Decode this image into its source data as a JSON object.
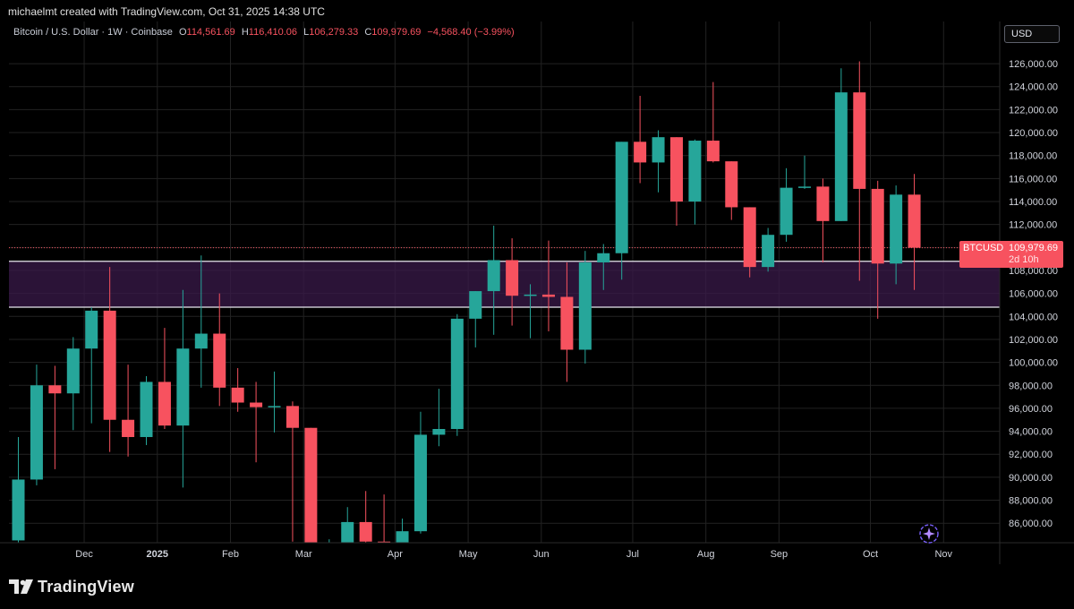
{
  "credit": "michaelmt created with TradingView.com, Oct 31, 2025 14:38 UTC",
  "legend": {
    "symbol": "Bitcoin / U.S. Dollar · 1W · Coinbase",
    "open_label": "O",
    "open": "114,561.69",
    "high_label": "H",
    "high": "116,410.06",
    "low_label": "L",
    "low": "106,279.33",
    "close_label": "C",
    "close": "109,979.69",
    "change": "−4,568.40 (−3.99%)"
  },
  "currency_button": "USD",
  "price_tag": {
    "symbol": "BTCUSD",
    "price": "109,979.69",
    "countdown": "2d 10h"
  },
  "brand": {
    "name": "TradingView"
  },
  "colors": {
    "up": "#26a69a",
    "down": "#f7525f",
    "zone": "#3a1a4a",
    "grid": "#222222"
  },
  "chart_data": {
    "type": "candlestick",
    "title": "Bitcoin / U.S. Dollar · 1W · Coinbase",
    "ylim": [
      84300,
      127800
    ],
    "y_ticks": [
      86000,
      88000,
      90000,
      92000,
      94000,
      96000,
      98000,
      100000,
      102000,
      104000,
      106000,
      108000,
      110000,
      112000,
      114000,
      116000,
      118000,
      120000,
      122000,
      124000,
      126000
    ],
    "y_tick_labels": [
      "86,000.00",
      "88,000.00",
      "90,000.00",
      "92,000.00",
      "94,000.00",
      "96,000.00",
      "98,000.00",
      "100,000.00",
      "102,000.00",
      "104,000.00",
      "106,000.00",
      "108,000.00",
      "110,000.00",
      "112,000.00",
      "114,000.00",
      "116,000.00",
      "118,000.00",
      "120,000.00",
      "122,000.00",
      "124,000.00",
      "126,000.00"
    ],
    "x_labels": [
      {
        "label": "Dec",
        "index": 3.6
      },
      {
        "label": "2025",
        "index": 7.6
      },
      {
        "label": "Feb",
        "index": 11.6
      },
      {
        "label": "Mar",
        "index": 15.6
      },
      {
        "label": "Apr",
        "index": 20.6
      },
      {
        "label": "May",
        "index": 24.6
      },
      {
        "label": "Jun",
        "index": 28.6
      },
      {
        "label": "Jul",
        "index": 33.6
      },
      {
        "label": "Aug",
        "index": 37.6
      },
      {
        "label": "Sep",
        "index": 41.6
      },
      {
        "label": "Oct",
        "index": 46.6
      },
      {
        "label": "Nov",
        "index": 50.6
      }
    ],
    "support_zone": [
      104800,
      108800
    ],
    "last_price": 109979.69,
    "candles": [
      {
        "o": 84500,
        "h": 93500,
        "l": 84300,
        "c": 89800
      },
      {
        "o": 89800,
        "h": 99800,
        "l": 89300,
        "c": 98000
      },
      {
        "o": 98000,
        "h": 99700,
        "l": 90700,
        "c": 97300
      },
      {
        "o": 97300,
        "h": 102200,
        "l": 94100,
        "c": 101200
      },
      {
        "o": 101200,
        "h": 104800,
        "l": 94700,
        "c": 104500
      },
      {
        "o": 104500,
        "h": 108300,
        "l": 92200,
        "c": 95000
      },
      {
        "o": 95000,
        "h": 99800,
        "l": 91800,
        "c": 93500
      },
      {
        "o": 93500,
        "h": 98800,
        "l": 92800,
        "c": 98300
      },
      {
        "o": 98300,
        "h": 103000,
        "l": 94200,
        "c": 94500
      },
      {
        "o": 94500,
        "h": 106300,
        "l": 89100,
        "c": 101200
      },
      {
        "o": 101200,
        "h": 109300,
        "l": 97800,
        "c": 102500
      },
      {
        "o": 102500,
        "h": 106000,
        "l": 96200,
        "c": 97800
      },
      {
        "o": 97800,
        "h": 99500,
        "l": 95700,
        "c": 96500
      },
      {
        "o": 96500,
        "h": 98300,
        "l": 91300,
        "c": 96100
      },
      {
        "o": 96100,
        "h": 99200,
        "l": 93900,
        "c": 96200
      },
      {
        "o": 96200,
        "h": 96600,
        "l": 84400,
        "c": 94300
      },
      {
        "o": 94300,
        "h": 94300,
        "l": 78300,
        "c": 82700
      },
      {
        "o": 82700,
        "h": 84600,
        "l": 78800,
        "c": 82700
      },
      {
        "o": 82700,
        "h": 87400,
        "l": 82300,
        "c": 86100
      },
      {
        "o": 86100,
        "h": 88800,
        "l": 80200,
        "c": 84400
      },
      {
        "o": 84400,
        "h": 88500,
        "l": 82600,
        "c": 84100
      },
      {
        "o": 84100,
        "h": 86400,
        "l": 82800,
        "c": 85300
      },
      {
        "o": 85300,
        "h": 95700,
        "l": 85100,
        "c": 93700
      },
      {
        "o": 93700,
        "h": 97700,
        "l": 92700,
        "c": 94200
      },
      {
        "o": 94200,
        "h": 104200,
        "l": 93600,
        "c": 103800
      },
      {
        "o": 103800,
        "h": 106200,
        "l": 101300,
        "c": 106200
      },
      {
        "o": 106200,
        "h": 111900,
        "l": 102400,
        "c": 108900
      },
      {
        "o": 108900,
        "h": 110800,
        "l": 103200,
        "c": 105800
      },
      {
        "o": 105800,
        "h": 106800,
        "l": 102100,
        "c": 105900
      },
      {
        "o": 105900,
        "h": 110600,
        "l": 102700,
        "c": 105700
      },
      {
        "o": 105700,
        "h": 108700,
        "l": 98300,
        "c": 101100
      },
      {
        "o": 101100,
        "h": 109700,
        "l": 99900,
        "c": 108700
      },
      {
        "o": 108700,
        "h": 110300,
        "l": 106300,
        "c": 109500
      },
      {
        "o": 109500,
        "h": 119200,
        "l": 107200,
        "c": 119200
      },
      {
        "o": 119200,
        "h": 123200,
        "l": 115600,
        "c": 117400
      },
      {
        "o": 117400,
        "h": 120200,
        "l": 114800,
        "c": 119600
      },
      {
        "o": 119600,
        "h": 119600,
        "l": 111900,
        "c": 114000
      },
      {
        "o": 114000,
        "h": 119400,
        "l": 112000,
        "c": 119300
      },
      {
        "o": 119300,
        "h": 124400,
        "l": 117400,
        "c": 117500
      },
      {
        "o": 117500,
        "h": 117500,
        "l": 112400,
        "c": 113500
      },
      {
        "o": 113500,
        "h": 113500,
        "l": 107400,
        "c": 108300
      },
      {
        "o": 108300,
        "h": 111700,
        "l": 107900,
        "c": 111100
      },
      {
        "o": 111100,
        "h": 116900,
        "l": 110500,
        "c": 115200
      },
      {
        "o": 115200,
        "h": 118000,
        "l": 115100,
        "c": 115300
      },
      {
        "o": 115300,
        "h": 116000,
        "l": 108700,
        "c": 112300
      },
      {
        "o": 112300,
        "h": 125600,
        "l": 112300,
        "c": 123500
      },
      {
        "o": 123500,
        "h": 126200,
        "l": 107100,
        "c": 115100
      },
      {
        "o": 115100,
        "h": 115800,
        "l": 103800,
        "c": 108600
      },
      {
        "o": 108600,
        "h": 115400,
        "l": 106800,
        "c": 114600
      },
      {
        "o": 114600,
        "h": 116400,
        "l": 106300,
        "c": 109980
      }
    ]
  }
}
